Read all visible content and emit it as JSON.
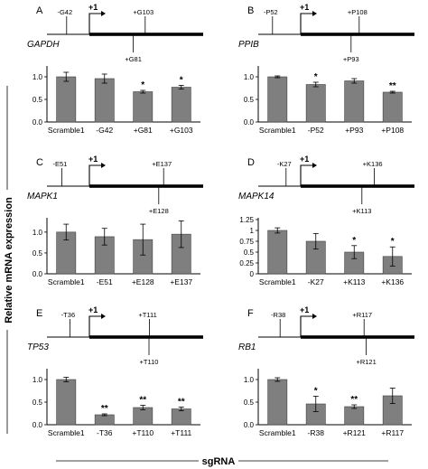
{
  "figure": {
    "ylabel": "Relative mRNA expression",
    "xlabel": "sgRNA",
    "tss_label": "+1"
  },
  "chart_data": [
    {
      "panel": "A",
      "gene": "GAPDH",
      "type": "bar",
      "categories": [
        "Scramble1",
        "-G42",
        "+G81",
        "+G103"
      ],
      "values": [
        1.0,
        0.96,
        0.67,
        0.77
      ],
      "errors": [
        0.1,
        0.1,
        0.03,
        0.04
      ],
      "significance": [
        "",
        "",
        "*",
        "*"
      ],
      "ylim": [
        0,
        1.2
      ],
      "yticks": [
        "0.0",
        "0.5",
        "1.0"
      ],
      "sites": [
        {
          "label": "-G42",
          "pos": -42,
          "side": "top"
        },
        {
          "label": "+G81",
          "pos": 81,
          "side": "bottom"
        },
        {
          "label": "+G103",
          "pos": 103,
          "side": "top"
        }
      ]
    },
    {
      "panel": "B",
      "gene": "PPIB",
      "type": "bar",
      "categories": [
        "Scramble1",
        "-P52",
        "+P93",
        "+P108"
      ],
      "values": [
        1.0,
        0.83,
        0.91,
        0.66
      ],
      "errors": [
        0.02,
        0.05,
        0.05,
        0.02
      ],
      "significance": [
        "",
        "*",
        "",
        "**"
      ],
      "ylim": [
        0,
        1.2
      ],
      "yticks": [
        "0.0",
        "0.5",
        "1.0"
      ],
      "sites": [
        {
          "label": "-P52",
          "pos": -52,
          "side": "top"
        },
        {
          "label": "+P93",
          "pos": 93,
          "side": "bottom"
        },
        {
          "label": "+P108",
          "pos": 108,
          "side": "top"
        }
      ]
    },
    {
      "panel": "C",
      "gene": "MAPK1",
      "type": "bar",
      "categories": [
        "Scramble1",
        "-E51",
        "+E128",
        "+E137"
      ],
      "values": [
        1.0,
        0.89,
        0.82,
        0.95
      ],
      "errors": [
        0.19,
        0.2,
        0.37,
        0.32
      ],
      "significance": [
        "",
        "",
        "",
        ""
      ],
      "ylim": [
        0,
        1.3
      ],
      "yticks": [
        "0.0",
        "0.5",
        "1.0"
      ],
      "sites": [
        {
          "label": "-E51",
          "pos": -51,
          "side": "top"
        },
        {
          "label": "+E128",
          "pos": 128,
          "side": "bottom"
        },
        {
          "label": "+E137",
          "pos": 137,
          "side": "top"
        }
      ]
    },
    {
      "panel": "D",
      "gene": "MAPK14",
      "type": "bar",
      "categories": [
        "Scramble1",
        "-K27",
        "+K113",
        "+K136"
      ],
      "values": [
        1.0,
        0.75,
        0.5,
        0.4
      ],
      "errors": [
        0.06,
        0.18,
        0.15,
        0.22
      ],
      "significance": [
        "",
        "",
        "*",
        "*"
      ],
      "ylim": [
        0,
        1.25
      ],
      "yticks": [
        "0",
        "0.25",
        "0.5",
        "0.75",
        "1",
        "1.25"
      ],
      "sites": [
        {
          "label": "-K27",
          "pos": -27,
          "side": "top"
        },
        {
          "label": "+K113",
          "pos": 113,
          "side": "bottom"
        },
        {
          "label": "+K136",
          "pos": 136,
          "side": "top"
        }
      ]
    },
    {
      "panel": "E",
      "gene": "TP53",
      "type": "bar",
      "categories": [
        "Scramble1",
        "-T36",
        "+T110",
        "+T111"
      ],
      "values": [
        1.0,
        0.22,
        0.38,
        0.35
      ],
      "errors": [
        0.05,
        0.02,
        0.05,
        0.04
      ],
      "significance": [
        "",
        "**",
        "**",
        "**"
      ],
      "ylim": [
        0,
        1.2
      ],
      "yticks": [
        "0.0",
        "0.5",
        "1.0"
      ],
      "sites": [
        {
          "label": "-T36",
          "pos": -36,
          "side": "top"
        },
        {
          "label": "+T110",
          "pos": 110,
          "side": "bottom"
        },
        {
          "label": "+T111",
          "pos": 111,
          "side": "top"
        }
      ]
    },
    {
      "panel": "F",
      "gene": "RB1",
      "type": "bar",
      "categories": [
        "Scramble1",
        "-R38",
        "+R121",
        "+R117"
      ],
      "values": [
        1.0,
        0.46,
        0.4,
        0.64
      ],
      "errors": [
        0.04,
        0.17,
        0.04,
        0.17
      ],
      "significance": [
        "",
        "*",
        "**",
        ""
      ],
      "ylim": [
        0,
        1.2
      ],
      "yticks": [
        "0.0",
        "0.5",
        "1.0"
      ],
      "sites": [
        {
          "label": "-R38",
          "pos": -38,
          "side": "top"
        },
        {
          "label": "+R121",
          "pos": 121,
          "side": "bottom"
        },
        {
          "label": "+R117",
          "pos": 117,
          "side": "top"
        }
      ]
    }
  ]
}
